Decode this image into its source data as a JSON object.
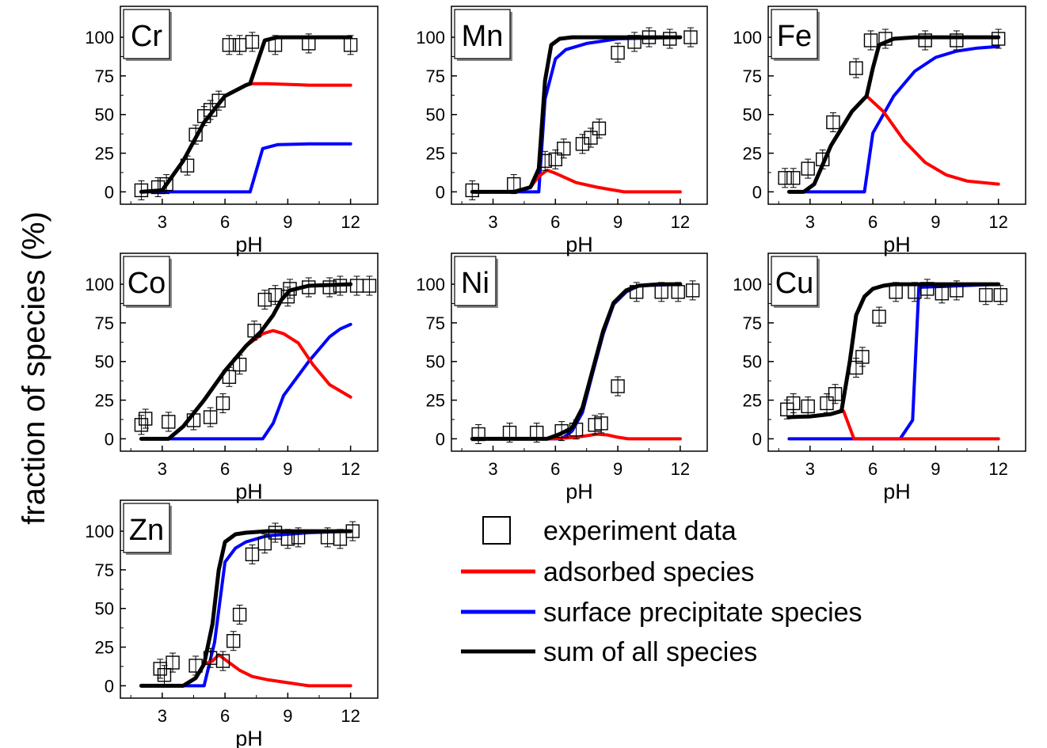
{
  "figure": {
    "ylabel": "fraction of species (%)"
  },
  "legend": {
    "items": [
      {
        "key": "exp",
        "label": "experiment data",
        "type": "marker",
        "color": "#000000"
      },
      {
        "key": "ads",
        "label": "adsorbed species",
        "type": "line",
        "color": "#ff0000"
      },
      {
        "key": "pre",
        "label": "surface precipitate species",
        "type": "line",
        "color": "#0000ff"
      },
      {
        "key": "sum",
        "label": "sum of all species",
        "type": "line",
        "color": "#000000"
      }
    ]
  },
  "chart_data": [
    {
      "type": "line",
      "element": "Cr",
      "xlabel": "pH",
      "xticks": [
        3,
        6,
        9,
        12
      ],
      "yticks": [
        0,
        25,
        50,
        75,
        100
      ],
      "xlim": [
        1,
        13.3
      ],
      "ylim": [
        -8,
        120
      ],
      "series": [
        {
          "key": "sum",
          "x": [
            2,
            3,
            4,
            5,
            6,
            7,
            7.2,
            7.9,
            8.5,
            10,
            12
          ],
          "y": [
            0,
            1,
            20,
            45,
            62,
            69,
            70,
            98,
            100,
            100,
            100
          ]
        },
        {
          "key": "ads",
          "x": [
            2,
            3,
            4,
            5,
            6,
            7,
            7.3,
            8,
            9,
            10,
            12
          ],
          "y": [
            0,
            1,
            20,
            45,
            62,
            69,
            70,
            70,
            69.5,
            69,
            69
          ]
        },
        {
          "key": "pre",
          "x": [
            2,
            7.2,
            7.8,
            8.5,
            10,
            12
          ],
          "y": [
            0,
            0,
            28,
            30.5,
            31,
            31
          ]
        }
      ],
      "experiment": {
        "x": [
          2,
          2.8,
          3.2,
          4.2,
          4.6,
          5,
          5.3,
          5.7,
          6.2,
          6.7,
          7.3,
          8.4,
          10,
          12
        ],
        "y": [
          1,
          3,
          5,
          17,
          37,
          49,
          53,
          59,
          95,
          95,
          97,
          95,
          96,
          95
        ]
      }
    },
    {
      "type": "line",
      "element": "Mn",
      "xlabel": "pH",
      "xticks": [
        3,
        6,
        9,
        12
      ],
      "yticks": [
        0,
        25,
        50,
        75,
        100
      ],
      "xlim": [
        1,
        13.3
      ],
      "ylim": [
        -8,
        120
      ],
      "series": [
        {
          "key": "sum",
          "x": [
            2,
            4,
            4.8,
            5.2,
            5.5,
            5.8,
            6.2,
            6.8,
            8,
            10,
            12
          ],
          "y": [
            0,
            0,
            3,
            15,
            72,
            95,
            99,
            100,
            100,
            100,
            100
          ]
        },
        {
          "key": "ads",
          "x": [
            2,
            4,
            4.8,
            5.2,
            5.6,
            6,
            6.5,
            7,
            8,
            9.3,
            12
          ],
          "y": [
            0,
            0,
            3,
            10,
            14,
            12,
            9,
            6,
            3,
            0,
            0
          ]
        },
        {
          "key": "pre",
          "x": [
            2,
            5.2,
            5.5,
            6,
            6.5,
            7.5,
            9,
            12
          ],
          "y": [
            0,
            0,
            60,
            86,
            92,
            96,
            99,
            100
          ]
        }
      ],
      "experiment": {
        "x": [
          2,
          4,
          5.5,
          6,
          6.4,
          7.3,
          7.7,
          8.1,
          9,
          9.8,
          10.5,
          11.5,
          12.5
        ],
        "y": [
          1,
          5,
          20,
          21,
          28,
          31,
          35,
          41,
          90,
          97,
          100,
          99,
          100
        ]
      }
    },
    {
      "type": "line",
      "element": "Fe",
      "xlabel": "pH",
      "xticks": [
        3,
        6,
        9,
        12
      ],
      "yticks": [
        0,
        25,
        50,
        75,
        100
      ],
      "xlim": [
        1,
        13.3
      ],
      "ylim": [
        -8,
        120
      ],
      "series": [
        {
          "key": "sum",
          "x": [
            2,
            2.7,
            3.2,
            4,
            5,
            5.7,
            6,
            6.3,
            7,
            8,
            10,
            12
          ],
          "y": [
            0,
            0,
            5,
            30,
            52,
            62,
            80,
            95,
            99,
            100,
            100,
            100
          ]
        },
        {
          "key": "ads",
          "x": [
            2,
            2.7,
            3.2,
            4,
            5,
            5.7,
            6.5,
            7.5,
            8.5,
            9.5,
            10.5,
            12
          ],
          "y": [
            0,
            0,
            5,
            30,
            52,
            62,
            52,
            33,
            19,
            11,
            7,
            5
          ]
        },
        {
          "key": "pre",
          "x": [
            2,
            5.6,
            6,
            7,
            8,
            9,
            10,
            11,
            12
          ],
          "y": [
            0,
            0,
            38,
            62,
            78,
            87,
            91,
            93,
            94
          ]
        }
      ],
      "experiment": {
        "x": [
          1.8,
          2.2,
          2.9,
          3.6,
          4.1,
          5.2,
          5.9,
          6.6,
          8.5,
          10,
          12
        ],
        "y": [
          9,
          9,
          15,
          21,
          45,
          80,
          98,
          99,
          98,
          98,
          99
        ]
      }
    },
    {
      "type": "line",
      "element": "Co",
      "xlabel": "pH",
      "xticks": [
        3,
        6,
        9,
        12
      ],
      "yticks": [
        0,
        25,
        50,
        75,
        100
      ],
      "xlim": [
        1,
        13.3
      ],
      "ylim": [
        -8,
        120
      ],
      "series": [
        {
          "key": "sum",
          "x": [
            2,
            3.3,
            4,
            5,
            6,
            7,
            7.7,
            8.3,
            8.7,
            9.1,
            10,
            12
          ],
          "y": [
            0,
            0,
            8,
            25,
            44,
            60,
            69,
            80,
            90,
            96,
            99,
            100
          ]
        },
        {
          "key": "ads",
          "x": [
            2,
            3.3,
            4,
            5,
            6,
            7,
            7.8,
            8.3,
            8.8,
            9.5,
            10.2,
            11,
            12
          ],
          "y": [
            0,
            0,
            8,
            25,
            44,
            60,
            68,
            70,
            68,
            62,
            48,
            35,
            27
          ]
        },
        {
          "key": "pre",
          "x": [
            2,
            7.8,
            8.3,
            8.8,
            10,
            11,
            11.5,
            12
          ],
          "y": [
            0,
            0,
            10,
            28,
            50,
            66,
            71,
            74
          ]
        }
      ],
      "experiment": {
        "x": [
          2,
          2.2,
          3.3,
          4.5,
          5.3,
          5.9,
          6.2,
          6.7,
          7.4,
          7.9,
          8.4,
          9,
          9.1,
          10,
          11,
          11.5,
          12.3,
          12.9
        ],
        "y": [
          9,
          13,
          11,
          12,
          14,
          23,
          40,
          48,
          70,
          90,
          93,
          92,
          97,
          98,
          98,
          99,
          99,
          99
        ]
      }
    },
    {
      "type": "line",
      "element": "Ni",
      "xlabel": "pH",
      "xticks": [
        3,
        6,
        9,
        12
      ],
      "yticks": [
        0,
        25,
        50,
        75,
        100
      ],
      "xlim": [
        1,
        13.3
      ],
      "ylim": [
        -8,
        120
      ],
      "series": [
        {
          "key": "sum",
          "x": [
            2,
            5.6,
            6.2,
            6.8,
            7.3,
            7.8,
            8.3,
            8.8,
            9.4,
            10,
            11,
            12
          ],
          "y": [
            0,
            0,
            3,
            7,
            20,
            45,
            70,
            88,
            96,
            99,
            100,
            100
          ]
        },
        {
          "key": "ads",
          "x": [
            2,
            5.8,
            6.5,
            7,
            7.5,
            8,
            8.5,
            9,
            9.5,
            12
          ],
          "y": [
            0,
            0,
            0.5,
            1,
            2,
            3,
            2.5,
            1,
            0,
            0
          ]
        },
        {
          "key": "pre",
          "x": [
            2,
            6.3,
            6.8,
            7.3,
            7.8,
            8.3,
            8.8,
            9.4,
            10,
            12
          ],
          "y": [
            0,
            0,
            5,
            17,
            43,
            68,
            87,
            95,
            99,
            100
          ]
        }
      ],
      "experiment": {
        "x": [
          2.3,
          3.8,
          5.1,
          6.3,
          7,
          7.9,
          8.2,
          9,
          9.9,
          11.1,
          11.9,
          12.6
        ],
        "y": [
          3,
          4,
          4,
          5,
          6,
          9,
          10,
          34,
          95,
          95,
          95,
          96
        ]
      }
    },
    {
      "type": "line",
      "element": "Cu",
      "xlabel": "pH",
      "xticks": [
        3,
        6,
        9,
        12
      ],
      "yticks": [
        0,
        25,
        50,
        75,
        100
      ],
      "xlim": [
        1,
        13.3
      ],
      "ylim": [
        -8,
        120
      ],
      "series": [
        {
          "key": "sum",
          "x": [
            2,
            3,
            4,
            4.5,
            4.9,
            5.2,
            5.6,
            6,
            6.5,
            7,
            8,
            10,
            12
          ],
          "y": [
            14,
            14.5,
            16,
            18,
            50,
            80,
            92,
            97,
            99,
            100,
            100,
            100,
            100
          ]
        },
        {
          "key": "ads",
          "x": [
            2,
            3,
            4,
            4.6,
            5.1,
            12
          ],
          "y": [
            14,
            14.5,
            16,
            18,
            0,
            0
          ]
        },
        {
          "key": "pre",
          "x": [
            2,
            7.3,
            7.9,
            8.2,
            12
          ],
          "y": [
            0,
            0,
            12,
            98,
            100
          ]
        }
      ],
      "experiment": {
        "x": [
          1.9,
          2.2,
          2.9,
          3.8,
          4.2,
          5.2,
          5.5,
          6.3,
          7.1,
          8,
          8.6,
          9.3,
          10,
          11.4,
          12.1
        ],
        "y": [
          19,
          23,
          21,
          23,
          29,
          46,
          53,
          79,
          95,
          95,
          97,
          94,
          96,
          93,
          93
        ]
      }
    },
    {
      "type": "line",
      "element": "Zn",
      "xlabel": "pH",
      "xticks": [
        3,
        6,
        9,
        12
      ],
      "yticks": [
        0,
        25,
        50,
        75,
        100
      ],
      "xlim": [
        1,
        13.3
      ],
      "ylim": [
        -8,
        120
      ],
      "series": [
        {
          "key": "sum",
          "x": [
            2,
            4,
            4.6,
            5,
            5.4,
            5.7,
            6,
            6.5,
            7,
            8,
            10,
            12
          ],
          "y": [
            0,
            0,
            5,
            14,
            40,
            75,
            93,
            98,
            99,
            100,
            100,
            100
          ]
        },
        {
          "key": "ads",
          "x": [
            2,
            4,
            4.6,
            5,
            5.4,
            5.7,
            6.2,
            6.7,
            7.3,
            8,
            9,
            10,
            12
          ],
          "y": [
            0,
            0,
            5,
            14,
            16,
            20,
            15,
            10,
            6,
            4,
            2,
            0,
            0
          ]
        },
        {
          "key": "pre",
          "x": [
            2,
            5,
            5.5,
            6,
            6.5,
            7,
            8,
            10,
            12
          ],
          "y": [
            0,
            0,
            28,
            80,
            89,
            93,
            97,
            99,
            100
          ]
        }
      ],
      "experiment": {
        "x": [
          2.9,
          3.1,
          3.5,
          4.6,
          5.3,
          5.9,
          6.4,
          6.7,
          7.3,
          7.9,
          8.4,
          9,
          9.5,
          10.9,
          11.5,
          12.1
        ],
        "y": [
          11,
          7,
          15,
          13,
          18,
          16,
          29,
          46,
          85,
          92,
          99,
          95,
          96,
          96,
          95,
          100
        ]
      }
    }
  ]
}
